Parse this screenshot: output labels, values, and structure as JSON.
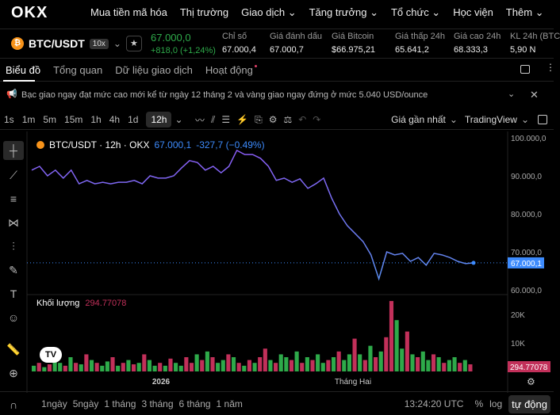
{
  "nav": {
    "logo": "OKX",
    "items": [
      "Mua tiền mã hóa",
      "Thị trường",
      "Giao dịch",
      "Tăng trưởng",
      "Tổ chức",
      "Học viện",
      "Thêm"
    ]
  },
  "ticker": {
    "symbol": "BTC/USDT",
    "leverage": "10x",
    "price": "67.000,0",
    "change": "+818,0 (+1,24%)",
    "stats": [
      {
        "label": "Chỉ số",
        "value": "67.000,4"
      },
      {
        "label": "Giá đánh dấu",
        "value": "67.000,7"
      },
      {
        "label": "Giá Bitcoin",
        "value": "$66.975,21"
      },
      {
        "label": "Giá thấp 24h",
        "value": "65.641,2"
      },
      {
        "label": "Giá cao 24h",
        "value": "68.333,3"
      },
      {
        "label": "KL 24h (BTC",
        "value": "5,90 N"
      }
    ]
  },
  "tabs": [
    "Biểu đồ",
    "Tổng quan",
    "Dữ liệu giao dịch",
    "Hoạt động"
  ],
  "notice": "Bạc giao ngay đạt mức cao mới kể từ ngày 12 tháng 2 và vàng giao ngay đứng ở mức 5.040 USD/ounce",
  "toolbar": {
    "timeframes": [
      "1s",
      "1m",
      "5m",
      "15m",
      "1h",
      "4h",
      "1d",
      "12h"
    ],
    "selected": "12h",
    "price_type": "Giá gần nhất",
    "view": "TradingView"
  },
  "colors": {
    "up": "#2eaa4a",
    "down": "#c2305a",
    "line_start": "#8b5cf6",
    "line_end": "#5b8def",
    "price_tag": "#3d8bfd",
    "vol_tag": "#c2305a"
  },
  "chart_data": {
    "type": "line",
    "legend": "BTC/USDT · 12h · OKX",
    "legend_price": "67.000,1",
    "legend_change": "-327,7 (−0.49%)",
    "ylim": [
      60000,
      100000
    ],
    "yticks": [
      "100.000,0",
      "90.000,0",
      "80.000,0",
      "70.000,0",
      "60.000,0"
    ],
    "last_price_label": "67.000,1",
    "xticks": [
      "2026",
      "Tháng Hai"
    ],
    "values": [
      91500,
      92500,
      90000,
      91500,
      89400,
      91500,
      87900,
      88800,
      87900,
      88300,
      87900,
      88300,
      88300,
      88800,
      87900,
      90000,
      89400,
      89400,
      90000,
      92100,
      94000,
      93500,
      91500,
      92500,
      90800,
      92500,
      96700,
      95600,
      95600,
      94600,
      92500,
      88800,
      89400,
      88300,
      89200,
      86700,
      87900,
      89400,
      84200,
      80000,
      76900,
      74800,
      72700,
      69200,
      62900,
      70000,
      69200,
      69600,
      67500,
      68500,
      66500,
      69600,
      69200,
      68500,
      67500,
      66900,
      67100
    ],
    "volume": {
      "label": "Khối lượng",
      "value": "294.77078",
      "ylim": [
        0,
        25000
      ],
      "yticks": [
        "20K",
        "10K"
      ],
      "values": [
        2,
        3,
        1.5,
        2.5,
        4,
        3,
        2,
        5,
        3,
        2.5,
        6,
        4,
        3,
        2,
        3.5,
        5,
        2,
        3,
        4,
        2.5,
        3,
        6,
        4,
        2,
        3,
        2,
        4.5,
        3,
        2,
        5,
        3,
        6,
        4,
        7,
        5,
        3,
        4,
        6,
        5,
        3,
        2,
        4,
        3,
        5,
        8,
        4,
        3,
        6,
        5,
        4,
        7,
        3,
        5,
        4,
        6,
        3,
        4,
        5,
        7,
        4,
        6,
        11.5,
        6,
        4,
        9,
        5,
        7,
        12,
        24.7,
        18,
        8,
        14,
        6,
        5,
        7,
        4,
        6,
        5,
        3,
        4,
        5,
        3,
        4,
        2.5
      ],
      "up": [
        1,
        0,
        1,
        0,
        1,
        1,
        0,
        1,
        0,
        1,
        0,
        1,
        0,
        1,
        1,
        0,
        1,
        0,
        1,
        0,
        1,
        0,
        1,
        1,
        0,
        1,
        0,
        1,
        1,
        0,
        0,
        1,
        0,
        1,
        0,
        1,
        1,
        0,
        1,
        0,
        1,
        0,
        1,
        0,
        0,
        1,
        0,
        1,
        1,
        0,
        1,
        0,
        1,
        0,
        1,
        1,
        0,
        1,
        0,
        1,
        1,
        0,
        1,
        0,
        1,
        0,
        1,
        0,
        0,
        1,
        1,
        0,
        1,
        0,
        1,
        1,
        0,
        1,
        0,
        1,
        1,
        0,
        1,
        0
      ]
    }
  },
  "bottom": {
    "ranges": [
      "1ngày",
      "5ngày",
      "1 tháng",
      "3 tháng",
      "6 tháng",
      "1 năm"
    ],
    "time": "13:24:20 UTC",
    "pct": "%",
    "log": "log",
    "auto": "tự động"
  }
}
